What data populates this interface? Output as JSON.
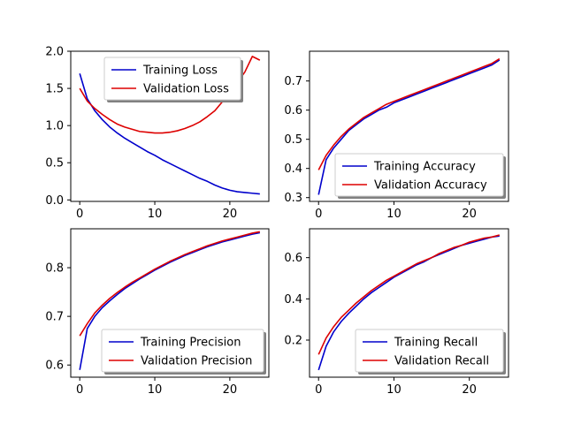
{
  "chart_data": [
    {
      "type": "line",
      "x": [
        0,
        1,
        2,
        3,
        4,
        5,
        6,
        7,
        8,
        9,
        10,
        11,
        12,
        13,
        14,
        15,
        16,
        17,
        18,
        19,
        20,
        21,
        22,
        23,
        24
      ],
      "xticks": [
        0,
        10,
        20
      ],
      "xlim": [
        -1.2,
        25.2
      ],
      "ylim": [
        -0.02,
        2.0
      ],
      "yticks": [
        "0.0",
        "0.5",
        "1.0",
        "1.5",
        "2.0"
      ],
      "grid": false,
      "legend_loc": "upper center",
      "series": [
        {
          "name": "Training Loss",
          "color": "#0000cc",
          "values": [
            1.7,
            1.36,
            1.2,
            1.08,
            0.98,
            0.9,
            0.83,
            0.77,
            0.71,
            0.65,
            0.6,
            0.54,
            0.49,
            0.44,
            0.39,
            0.34,
            0.29,
            0.25,
            0.2,
            0.16,
            0.13,
            0.11,
            0.1,
            0.09,
            0.08
          ]
        },
        {
          "name": "Validation Loss",
          "color": "#dd0000",
          "values": [
            1.5,
            1.33,
            1.23,
            1.15,
            1.08,
            1.02,
            0.98,
            0.95,
            0.92,
            0.91,
            0.9,
            0.9,
            0.91,
            0.93,
            0.96,
            1.0,
            1.05,
            1.12,
            1.2,
            1.32,
            1.45,
            1.58,
            1.72,
            1.93,
            1.88
          ]
        }
      ]
    },
    {
      "type": "line",
      "x": [
        0,
        1,
        2,
        3,
        4,
        5,
        6,
        7,
        8,
        9,
        10,
        11,
        12,
        13,
        14,
        15,
        16,
        17,
        18,
        19,
        20,
        21,
        22,
        23,
        24
      ],
      "xticks": [
        0,
        10,
        20
      ],
      "xlim": [
        -1.2,
        25.2
      ],
      "ylim": [
        0.287,
        0.802
      ],
      "yticks": [
        "0.3",
        "0.4",
        "0.5",
        "0.6",
        "0.7"
      ],
      "grid": false,
      "legend_loc": "lower right",
      "series": [
        {
          "name": "Training Accuracy",
          "color": "#0000cc",
          "values": [
            0.31,
            0.43,
            0.47,
            0.5,
            0.53,
            0.55,
            0.57,
            0.585,
            0.6,
            0.61,
            0.625,
            0.635,
            0.645,
            0.655,
            0.665,
            0.675,
            0.685,
            0.695,
            0.705,
            0.715,
            0.725,
            0.735,
            0.745,
            0.755,
            0.772
          ]
        },
        {
          "name": "Validation Accuracy",
          "color": "#dd0000",
          "values": [
            0.395,
            0.445,
            0.48,
            0.51,
            0.535,
            0.555,
            0.575,
            0.59,
            0.605,
            0.62,
            0.63,
            0.64,
            0.65,
            0.66,
            0.67,
            0.68,
            0.69,
            0.7,
            0.71,
            0.72,
            0.73,
            0.74,
            0.75,
            0.76,
            0.776
          ]
        }
      ]
    },
    {
      "type": "line",
      "x": [
        0,
        1,
        2,
        3,
        4,
        5,
        6,
        7,
        8,
        9,
        10,
        11,
        12,
        13,
        14,
        15,
        16,
        17,
        18,
        19,
        20,
        21,
        22,
        23,
        24
      ],
      "xticks": [
        0,
        10,
        20
      ],
      "xlim": [
        -1.2,
        25.2
      ],
      "ylim": [
        0.575,
        0.88
      ],
      "yticks": [
        "0.6",
        "0.7",
        "0.8"
      ],
      "grid": false,
      "legend_loc": "lower right",
      "series": [
        {
          "name": "Training Precision",
          "color": "#0000cc",
          "values": [
            0.59,
            0.675,
            0.7,
            0.718,
            0.732,
            0.745,
            0.757,
            0.767,
            0.777,
            0.786,
            0.795,
            0.803,
            0.811,
            0.818,
            0.825,
            0.831,
            0.837,
            0.843,
            0.848,
            0.853,
            0.857,
            0.861,
            0.865,
            0.869,
            0.872
          ]
        },
        {
          "name": "Validation Precision",
          "color": "#dd0000",
          "values": [
            0.66,
            0.685,
            0.707,
            0.723,
            0.737,
            0.749,
            0.76,
            0.77,
            0.779,
            0.788,
            0.797,
            0.805,
            0.813,
            0.82,
            0.827,
            0.833,
            0.839,
            0.845,
            0.85,
            0.855,
            0.859,
            0.863,
            0.867,
            0.871,
            0.874
          ]
        }
      ]
    },
    {
      "type": "line",
      "x": [
        0,
        1,
        2,
        3,
        4,
        5,
        6,
        7,
        8,
        9,
        10,
        11,
        12,
        13,
        14,
        15,
        16,
        17,
        18,
        19,
        20,
        21,
        22,
        23,
        24
      ],
      "xticks": [
        0,
        10,
        20
      ],
      "xlim": [
        -1.2,
        25.2
      ],
      "ylim": [
        0.02,
        0.74
      ],
      "yticks": [
        "0.2",
        "0.4",
        "0.6"
      ],
      "grid": false,
      "legend_loc": "lower right",
      "series": [
        {
          "name": "Training Recall",
          "color": "#0000cc",
          "values": [
            0.055,
            0.17,
            0.24,
            0.29,
            0.33,
            0.365,
            0.4,
            0.43,
            0.455,
            0.48,
            0.505,
            0.525,
            0.545,
            0.565,
            0.58,
            0.6,
            0.615,
            0.63,
            0.645,
            0.66,
            0.67,
            0.68,
            0.69,
            0.7,
            0.705
          ]
        },
        {
          "name": "Validation Recall",
          "color": "#dd0000",
          "values": [
            0.13,
            0.21,
            0.265,
            0.31,
            0.345,
            0.38,
            0.41,
            0.44,
            0.465,
            0.49,
            0.51,
            0.53,
            0.55,
            0.57,
            0.585,
            0.6,
            0.62,
            0.635,
            0.65,
            0.66,
            0.675,
            0.685,
            0.695,
            0.7,
            0.71
          ]
        }
      ]
    }
  ]
}
